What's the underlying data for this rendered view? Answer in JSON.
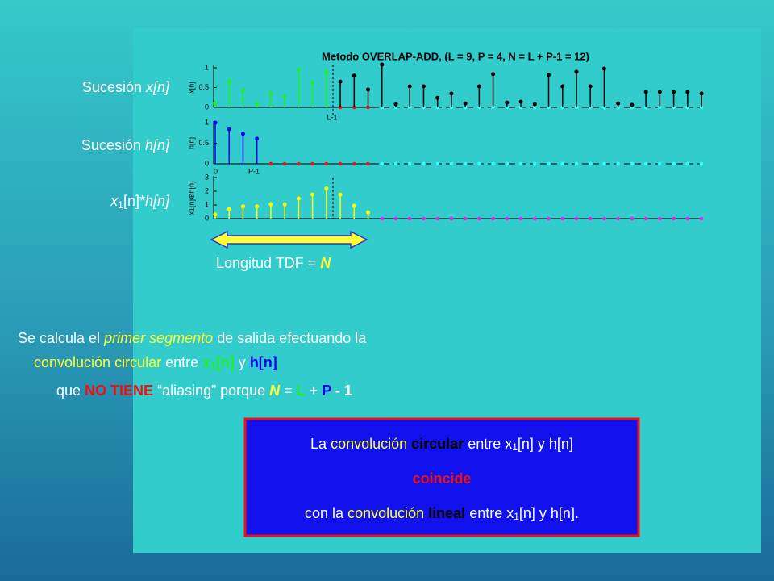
{
  "left_labels": [
    [
      "Sucesión ",
      "x[n]"
    ],
    [
      "Sucesión ",
      "h[n]"
    ],
    [
      "x",
      "1",
      "[n]",
      "*",
      "h[n]"
    ]
  ],
  "plots": {
    "title": "Metodo OVERLAP-ADD, (L = 9, P = 4, N = L + P-1 = 12)",
    "items": [
      {
        "axis_label": "x[n]",
        "ylim": [
          0,
          1
        ],
        "yticks": [
          0,
          0.5,
          1
        ],
        "marker": "L-1",
        "series": [
          {
            "color": "#22ee22",
            "values": [
              0.1,
              0.65,
              0.43,
              0.08,
              0.35,
              0.27,
              0.94,
              0.61,
              0.9
            ]
          },
          {
            "color": "#000000",
            "values": [
              0.65,
              0.8,
              0.45,
              1.08,
              0.08,
              0.53,
              0.53,
              0.24,
              0.35,
              0.1,
              0.53,
              0.84,
              0.12,
              0.14,
              0.08,
              0.82,
              0.53,
              0.9,
              0.53,
              0.98,
              0.1,
              0.06,
              0.39,
              0.39,
              0.39,
              0.39,
              0.35
            ]
          }
        ]
      },
      {
        "axis_label": "h[n]",
        "ylim": [
          0,
          1
        ],
        "yticks": [
          0,
          0.5,
          1
        ],
        "marker": "P-1",
        "origin_label": "0",
        "series": [
          {
            "color": "#0000ee",
            "values": [
              1.0,
              0.84,
              0.73,
              0.61
            ]
          }
        ]
      },
      {
        "axis_label": "x1[n]⊛h[n]",
        "ylim": [
          0,
          3
        ],
        "yticks": [
          0,
          1,
          2,
          3
        ],
        "series": [
          {
            "color": "#ffff00",
            "values": [
              0.3,
              0.7,
              0.9,
              0.9,
              1.05,
              1.05,
              1.47,
              1.76,
              2.2,
              1.76,
              0.94,
              0.47
            ]
          }
        ]
      }
    ]
  },
  "dft_length": [
    "Longitud TDF = ",
    "N"
  ],
  "paragraph": {
    "line1": [
      "Se calcula el ",
      "primer segmento",
      " de salida efectuando la"
    ],
    "line2": [
      "convolución circular",
      " entre ",
      "x",
      "1",
      "[n]",
      " y ",
      "h[n]"
    ],
    "line3": [
      "que ",
      "NO TIENE",
      " “aliasing” porque ",
      "N",
      " = ",
      "L",
      " + ",
      "P",
      " - 1"
    ]
  },
  "box": {
    "line1": [
      "La ",
      "convolución ",
      "circular",
      " entre x",
      "1",
      "[n] y h[n]"
    ],
    "line2": [
      "coincide"
    ],
    "line3": [
      "con la ",
      "convolución ",
      "lineal",
      " entre x",
      "1",
      "[n] y h[n]."
    ]
  }
}
